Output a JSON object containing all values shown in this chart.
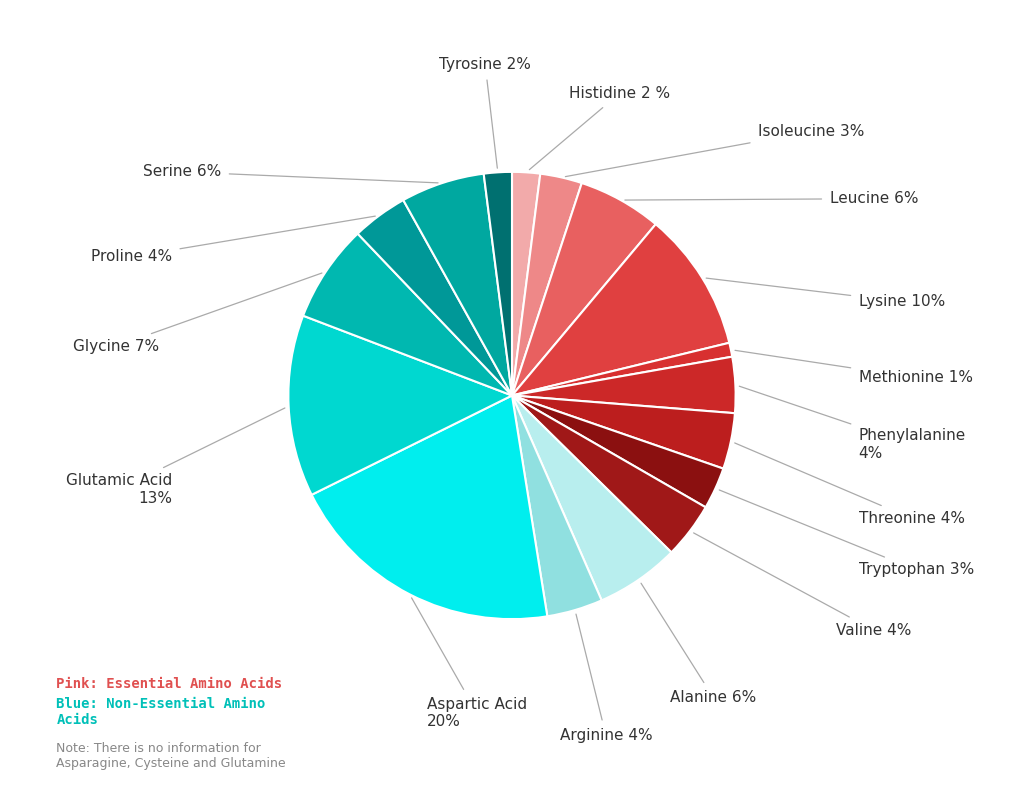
{
  "slices": [
    {
      "label": "Histidine 2 %",
      "value": 2,
      "color": "#F2AAAA",
      "type": "essential"
    },
    {
      "label": "Isoleucine 3%",
      "value": 3,
      "color": "#EE8888",
      "type": "essential"
    },
    {
      "label": "Leucine 6%",
      "value": 6,
      "color": "#E86060",
      "type": "essential"
    },
    {
      "label": "Lysine 10%",
      "value": 10,
      "color": "#E04040",
      "type": "essential"
    },
    {
      "label": "Methionine 1%",
      "value": 1,
      "color": "#D83030",
      "type": "essential"
    },
    {
      "label": "Phenylalanine\n4%",
      "value": 4,
      "color": "#CC2828",
      "type": "essential"
    },
    {
      "label": "Threonine 4%",
      "value": 4,
      "color": "#BC1E1E",
      "type": "essential"
    },
    {
      "label": "Tryptophan 3%",
      "value": 3,
      "color": "#8B1010",
      "type": "essential"
    },
    {
      "label": "Valine 4%",
      "value": 4,
      "color": "#A01818",
      "type": "essential"
    },
    {
      "label": "Alanine 6%",
      "value": 6,
      "color": "#B8EEEE",
      "type": "nonessential"
    },
    {
      "label": "Arginine 4%",
      "value": 4,
      "color": "#90E0E0",
      "type": "nonessential"
    },
    {
      "label": "Aspartic Acid\n20%",
      "value": 20,
      "color": "#00EEEE",
      "type": "nonessential"
    },
    {
      "label": "Glutamic Acid\n13%",
      "value": 13,
      "color": "#00D8D0",
      "type": "nonessential"
    },
    {
      "label": "Glycine 7%",
      "value": 7,
      "color": "#00B8B0",
      "type": "nonessential"
    },
    {
      "label": "Proline 4%",
      "value": 4,
      "color": "#009898",
      "type": "nonessential"
    },
    {
      "label": "Serine 6%",
      "value": 6,
      "color": "#00A8A0",
      "type": "nonessential"
    },
    {
      "label": "Tyrosine 2%",
      "value": 2,
      "color": "#007070",
      "type": "nonessential"
    }
  ],
  "background_color": "#ffffff",
  "legend_pink_text": "Pink: Essential Amino Acids",
  "legend_blue_text": "Blue: Non-Essential Amino\nAcids",
  "note_text": "Note: There is no information for\nAsparagine, Cysteine and Glutamine",
  "pink_color": "#E05050",
  "blue_color": "#00C0B8",
  "note_color": "#888888"
}
